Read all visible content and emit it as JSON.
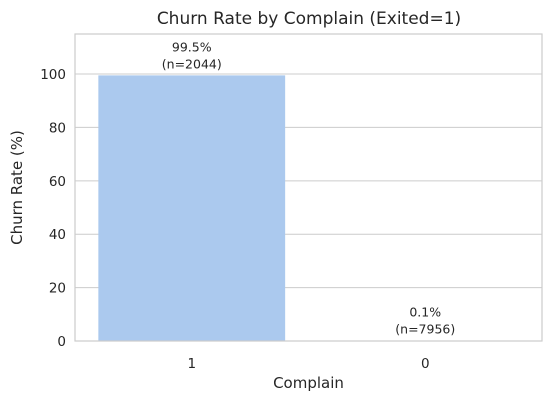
{
  "chart_data": {
    "type": "bar",
    "title": "Churn Rate by Complain (Exited=1)",
    "xlabel": "Complain",
    "ylabel": "Churn Rate (%)",
    "categories": [
      "1",
      "0"
    ],
    "values": [
      99.5,
      0.1
    ],
    "data_labels": [
      [
        "99.5%",
        "(n=2044)"
      ],
      [
        "0.1%",
        "(n=7956)"
      ]
    ],
    "ylim": [
      0,
      115
    ],
    "yticks": [
      0,
      20,
      40,
      60,
      80,
      100
    ],
    "grid": "y",
    "bar_color": "#abc9ee",
    "grid_color": "#cccccc"
  }
}
